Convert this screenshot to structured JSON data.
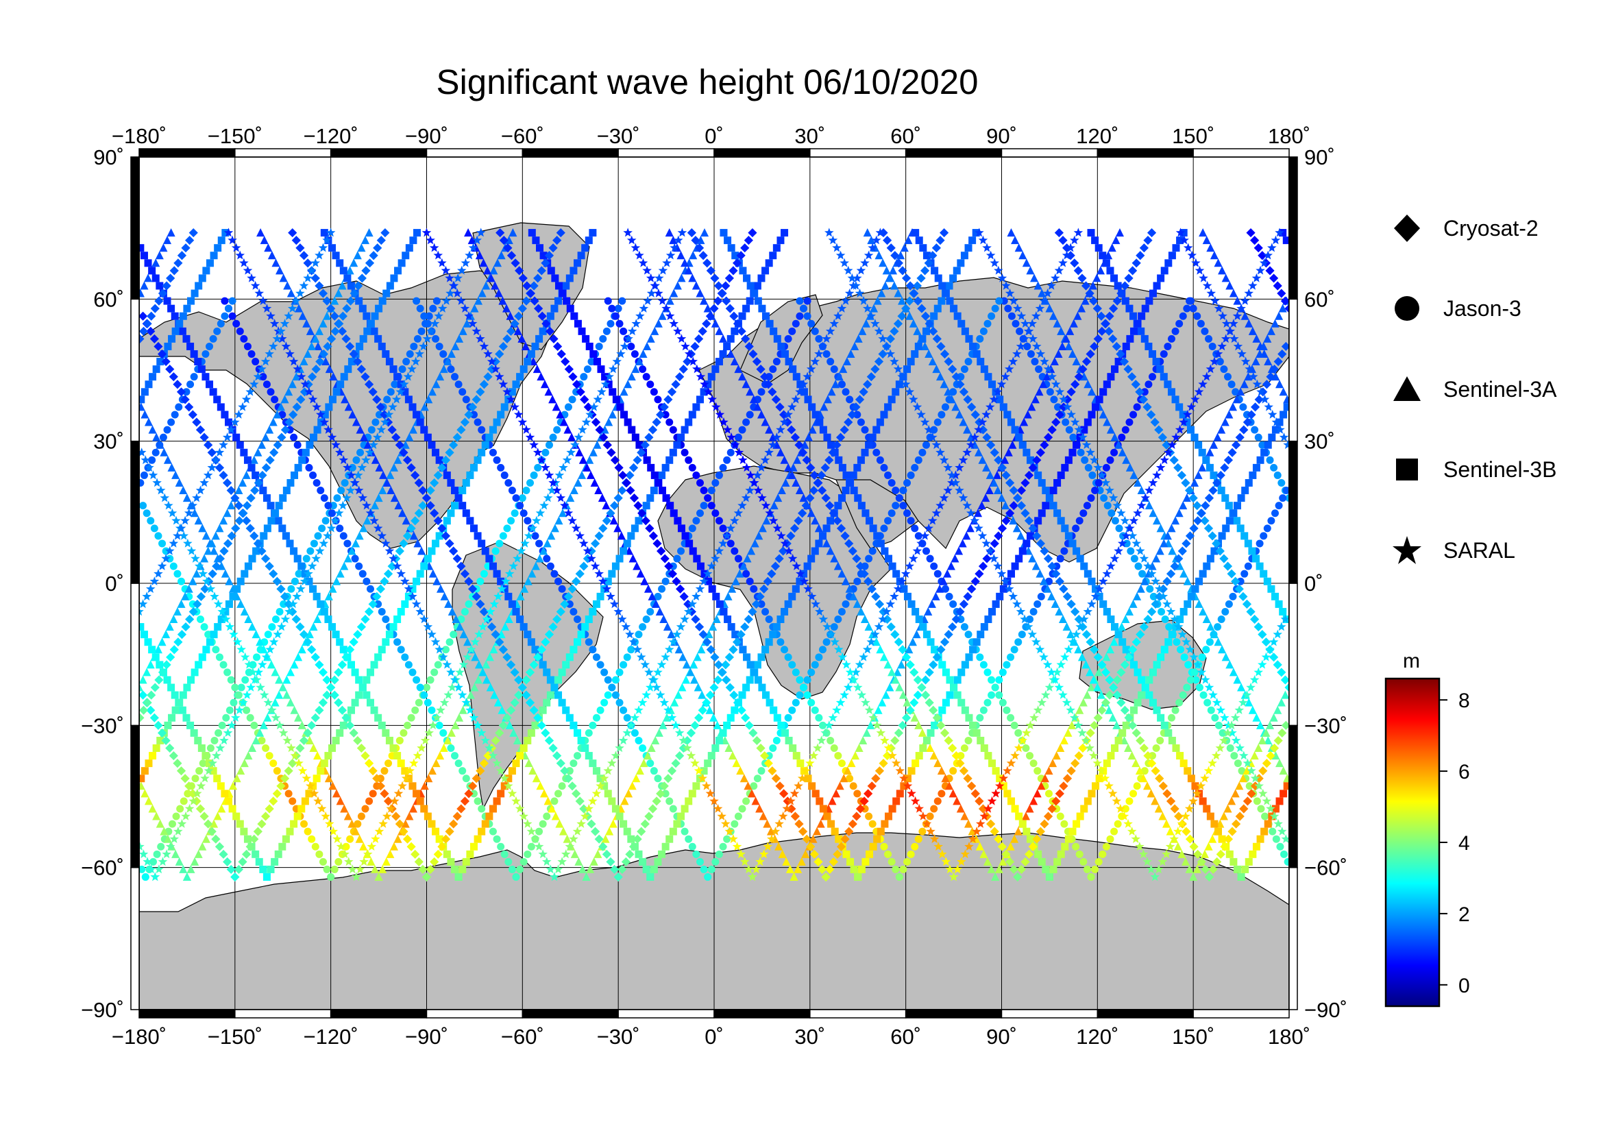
{
  "map": {
    "title": "Significant wave height 06/10/2020",
    "projection": "equirectangular",
    "lon_range": [
      -180,
      180
    ],
    "lat_range": [
      -90,
      90
    ],
    "lon_ticks": [
      -180,
      -150,
      -120,
      -90,
      -60,
      -30,
      0,
      30,
      60,
      90,
      120,
      150,
      180
    ],
    "lat_ticks": [
      -90,
      -60,
      -30,
      0,
      30,
      60,
      90
    ],
    "lon_tick_labels": [
      "−180˚",
      "−150˚",
      "−120˚",
      "−90˚",
      "−60˚",
      "−30˚",
      "0˚",
      "30˚",
      "60˚",
      "90˚",
      "120˚",
      "150˚",
      "180˚"
    ],
    "lat_tick_labels_left": [
      "−90˚",
      "−60˚",
      "−30˚",
      "0˚",
      "30˚",
      "60˚",
      "90˚"
    ],
    "lat_tick_labels_right": [
      "−90˚",
      "−60˚",
      "−30˚",
      "0˚",
      "30˚",
      "60˚",
      "90˚"
    ],
    "grid": true,
    "land_color": "#bebebe",
    "ocean_color": "#ffffff"
  },
  "legend": {
    "items": [
      {
        "label": "Cryosat-2",
        "marker": "diamond"
      },
      {
        "label": "Jason-3",
        "marker": "circle"
      },
      {
        "label": "Sentinel-3A",
        "marker": "triangle"
      },
      {
        "label": "Sentinel-3B",
        "marker": "square"
      },
      {
        "label": "SARAL",
        "marker": "star"
      }
    ]
  },
  "colorbar": {
    "unit": "m",
    "range": [
      -0.6,
      8.6
    ],
    "ticks": [
      0,
      2,
      4,
      6,
      8
    ],
    "tick_labels": [
      "0",
      "2",
      "4",
      "6",
      "8"
    ],
    "colormap": "jet"
  },
  "chart_data": {
    "type": "scatter",
    "title": "Significant wave height 06/10/2020",
    "xlabel": "",
    "ylabel": "",
    "xlim": [
      -180,
      180
    ],
    "ylim": [
      -90,
      90
    ],
    "color_variable": "Significant wave height (m)",
    "series": [
      {
        "name": "Jason-3",
        "marker": "circle",
        "tracks": [
          {
            "lat": [
              -62,
              60
            ],
            "lon0": -178,
            "h_lat": [
              -62,
              -45,
              -30,
              0,
              30,
              60
            ],
            "h": [
              3.0,
              4.5,
              3.5,
              2.2,
              1.6,
              1.2
            ]
          },
          {
            "lat": [
              -62,
              60
            ],
            "lon0": -120,
            "h_lat": [
              -62,
              -45,
              -30,
              0,
              30,
              60
            ],
            "h": [
              4.0,
              6.5,
              4.0,
              2.8,
              1.8,
              1.2
            ]
          },
          {
            "lat": [
              -62,
              60
            ],
            "lon0": -62,
            "h_lat": [
              -62,
              -45,
              -30,
              0,
              30,
              60
            ],
            "h": [
              3.5,
              4.0,
              3.0,
              1.5,
              1.0,
              0.8
            ]
          },
          {
            "lat": [
              -62,
              60
            ],
            "lon0": -2,
            "h_lat": [
              -62,
              -45,
              -30,
              0,
              30,
              60
            ],
            "h": [
              3.2,
              4.0,
              2.5,
              1.2,
              1.2,
              1.6
            ]
          },
          {
            "lat": [
              -62,
              60
            ],
            "lon0": 58,
            "h_lat": [
              -62,
              -45,
              -30,
              0,
              30,
              60
            ],
            "h": [
              4.2,
              6.5,
              3.5,
              1.0,
              0.5,
              1.0
            ]
          },
          {
            "lat": [
              -62,
              60
            ],
            "lon0": 118,
            "h_lat": [
              -62,
              -45,
              -30,
              0,
              30,
              60
            ],
            "h": [
              4.5,
              5.0,
              4.0,
              1.2,
              1.2,
              1.5
            ]
          }
        ]
      },
      {
        "name": "Sentinel-3A",
        "marker": "triangle",
        "tracks": [
          {
            "lat": [
              -62,
              75
            ],
            "lon0": -165,
            "h_lat": [
              -62,
              -45,
              -30,
              0,
              30,
              60,
              75
            ],
            "h": [
              3.5,
              5.0,
              3.0,
              2.2,
              1.5,
              1.5,
              1.2
            ]
          },
          {
            "lat": [
              -62,
              75
            ],
            "lon0": -105,
            "h_lat": [
              -62,
              -45,
              -30,
              0,
              30,
              60,
              75
            ],
            "h": [
              4.5,
              6.8,
              4.0,
              2.0,
              1.5,
              1.2,
              1.2
            ]
          },
          {
            "lat": [
              -62,
              75
            ],
            "lon0": -40,
            "h_lat": [
              -62,
              -45,
              -30,
              0,
              30,
              60,
              75
            ],
            "h": [
              3.8,
              5.5,
              3.2,
              1.5,
              1.0,
              1.5,
              1.0
            ]
          },
          {
            "lat": [
              -62,
              75
            ],
            "lon0": 25,
            "h_lat": [
              -62,
              -45,
              -30,
              0,
              30,
              60,
              75
            ],
            "h": [
              5.0,
              7.0,
              3.0,
              0.8,
              0.6,
              1.0,
              0.8
            ]
          },
          {
            "lat": [
              -62,
              75
            ],
            "lon0": 88,
            "h_lat": [
              -62,
              -45,
              -30,
              0,
              30,
              60,
              75
            ],
            "h": [
              4.0,
              7.2,
              4.5,
              1.5,
              1.0,
              1.2,
              1.0
            ]
          },
          {
            "lat": [
              -62,
              75
            ],
            "lon0": 150,
            "h_lat": [
              -62,
              -45,
              -30,
              0,
              30,
              60,
              75
            ],
            "h": [
              4.2,
              6.0,
              3.5,
              1.8,
              1.5,
              1.8,
              1.5
            ]
          }
        ]
      },
      {
        "name": "Sentinel-3B",
        "marker": "square",
        "tracks": [
          {
            "lat": [
              -62,
              75
            ],
            "lon0": -140,
            "h_lat": [
              -62,
              -45,
              -30,
              0,
              30,
              60,
              75
            ],
            "h": [
              3.0,
              5.5,
              3.5,
              2.5,
              1.8,
              1.2,
              1.0
            ]
          },
          {
            "lat": [
              -62,
              75
            ],
            "lon0": -80,
            "h_lat": [
              -62,
              -45,
              -30,
              0,
              30,
              60,
              75
            ],
            "h": [
              4.0,
              6.5,
              3.8,
              2.0,
              1.0,
              1.0,
              0.8
            ]
          },
          {
            "lat": [
              -62,
              75
            ],
            "lon0": -20,
            "h_lat": [
              -62,
              -45,
              -30,
              0,
              30,
              60,
              75
            ],
            "h": [
              3.6,
              4.5,
              2.8,
              1.2,
              1.0,
              1.5,
              1.2
            ]
          },
          {
            "lat": [
              -62,
              75
            ],
            "lon0": 45,
            "h_lat": [
              -62,
              -45,
              -30,
              0,
              30,
              60,
              75
            ],
            "h": [
              4.5,
              6.8,
              3.0,
              0.8,
              0.5,
              0.8,
              1.0
            ]
          },
          {
            "lat": [
              -62,
              75
            ],
            "lon0": 105,
            "h_lat": [
              -62,
              -45,
              -30,
              0,
              30,
              60,
              75
            ],
            "h": [
              4.0,
              5.5,
              4.0,
              1.5,
              1.2,
              1.5,
              1.5
            ]
          },
          {
            "lat": [
              -62,
              75
            ],
            "lon0": 165,
            "h_lat": [
              -62,
              -45,
              -30,
              0,
              30,
              60,
              75
            ],
            "h": [
              4.0,
              7.0,
              3.5,
              1.8,
              1.5,
              1.5,
              1.2
            ]
          }
        ]
      },
      {
        "name": "Cryosat-2",
        "marker": "diamond",
        "tracks": [
          {
            "lat": [
              -62,
              75
            ],
            "lon0": -150,
            "h_lat": [
              -62,
              -45,
              -30,
              0,
              30,
              60,
              75
            ],
            "h": [
              3.2,
              4.8,
              3.2,
              2.3,
              1.8,
              1.3,
              1.0
            ]
          },
          {
            "lat": [
              -62,
              75
            ],
            "lon0": -90,
            "h_lat": [
              -62,
              -45,
              -30,
              0,
              30,
              60,
              75
            ],
            "h": [
              4.2,
              6.8,
              3.5,
              2.0,
              1.2,
              0.8,
              0.6
            ]
          },
          {
            "lat": [
              -62,
              75
            ],
            "lon0": -30,
            "h_lat": [
              -62,
              -45,
              -30,
              0,
              30,
              60,
              75
            ],
            "h": [
              3.5,
              4.0,
              3.0,
              1.2,
              1.0,
              1.6,
              1.0
            ]
          },
          {
            "lat": [
              -62,
              75
            ],
            "lon0": 35,
            "h_lat": [
              -62,
              -45,
              -30,
              0,
              30,
              60,
              75
            ],
            "h": [
              4.8,
              7.2,
              3.2,
              0.6,
              0.5,
              1.0,
              1.0
            ]
          },
          {
            "lat": [
              -62,
              75
            ],
            "lon0": 95,
            "h_lat": [
              -62,
              -45,
              -30,
              0,
              30,
              60,
              75
            ],
            "h": [
              4.0,
              6.8,
              4.2,
              1.5,
              1.0,
              1.2,
              1.2
            ]
          },
          {
            "lat": [
              -62,
              75
            ],
            "lon0": 155,
            "h_lat": [
              -62,
              -45,
              -30,
              0,
              30,
              60,
              75
            ],
            "h": [
              4.0,
              6.5,
              3.8,
              1.6,
              1.5,
              1.5,
              1.2
            ]
          }
        ]
      },
      {
        "name": "SARAL",
        "marker": "star",
        "tracks": [
          {
            "lat": [
              -62,
              75
            ],
            "lon0": -175,
            "h_lat": [
              -62,
              -45,
              -30,
              0,
              30,
              60,
              75
            ],
            "h": [
              3.2,
              4.2,
              3.0,
              2.0,
              1.6,
              1.4,
              1.2
            ]
          },
          {
            "lat": [
              -62,
              75
            ],
            "lon0": -112,
            "h_lat": [
              -62,
              -45,
              -30,
              0,
              30,
              60,
              75
            ],
            "h": [
              4.2,
              6.0,
              3.8,
              2.4,
              1.6,
              1.2,
              1.0
            ]
          },
          {
            "lat": [
              -62,
              75
            ],
            "lon0": -50,
            "h_lat": [
              -62,
              -45,
              -30,
              0,
              30,
              60,
              75
            ],
            "h": [
              3.5,
              4.8,
              3.0,
              1.4,
              1.0,
              1.2,
              1.0
            ]
          },
          {
            "lat": [
              -62,
              75
            ],
            "lon0": 12,
            "h_lat": [
              -62,
              -45,
              -30,
              0,
              30,
              60,
              75
            ],
            "h": [
              4.5,
              6.5,
              3.0,
              1.0,
              0.8,
              1.2,
              0.8
            ]
          },
          {
            "lat": [
              -62,
              75
            ],
            "lon0": 75,
            "h_lat": [
              -62,
              -45,
              -30,
              0,
              30,
              60,
              75
            ],
            "h": [
              4.8,
              7.5,
              4.2,
              1.0,
              0.6,
              1.0,
              1.0
            ]
          },
          {
            "lat": [
              -62,
              75
            ],
            "lon0": 138,
            "h_lat": [
              -62,
              -45,
              -30,
              0,
              30,
              60,
              75
            ],
            "h": [
              3.8,
              5.8,
              3.6,
              1.5,
              1.4,
              1.6,
              1.4
            ]
          }
        ]
      }
    ]
  }
}
